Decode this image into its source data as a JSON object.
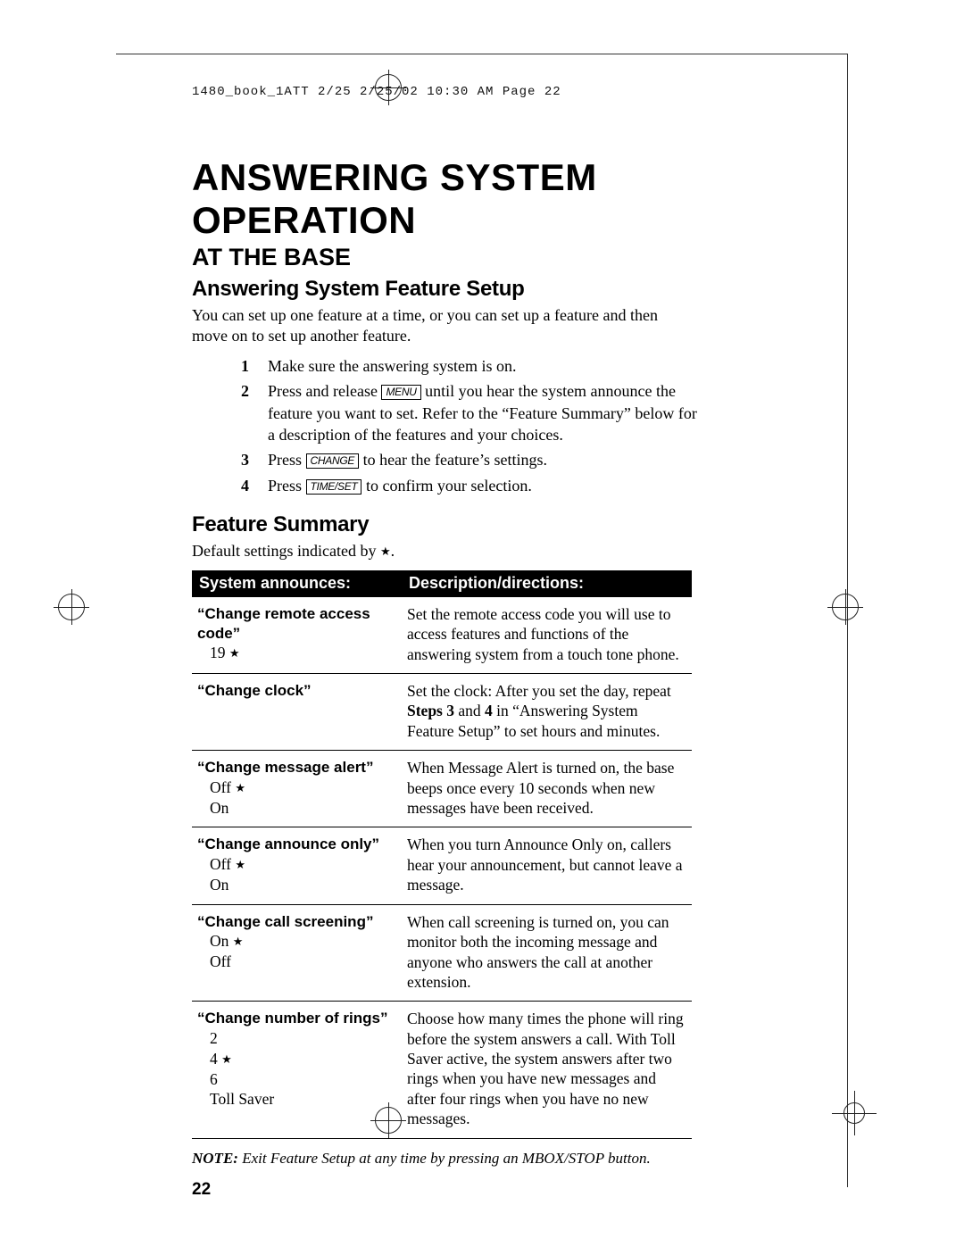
{
  "header_line": "1480_book_1ATT 2/25  2/25/02  10:30 AM  Page 22",
  "main_title": "ANSWERING SYSTEM OPERATION",
  "subtitle": "AT THE BASE",
  "section1_title": "Answering System Feature Setup",
  "intro_text": "You can set up one feature at a time, or you can set up a feature and then move on to set up another feature.",
  "steps": [
    {
      "num": "1",
      "before": "Make sure the answering system is on.",
      "key": "",
      "after": ""
    },
    {
      "num": "2",
      "before": "Press and release ",
      "key": "MENU",
      "after": " until you hear the system announce the feature you want to set.  Refer to the “Feature Summary” below for a description of the features and your choices."
    },
    {
      "num": "3",
      "before": "Press ",
      "key": "CHANGE",
      "after": " to hear the feature’s settings."
    },
    {
      "num": "4",
      "before": "Press ",
      "key": "TIME/SET",
      "after": " to confirm your selection."
    }
  ],
  "section2_title": "Feature Summary",
  "default_note_pre": "Default settings indicated by ",
  "default_note_post": ".",
  "table_header": {
    "col1": "System announces:",
    "col2": "Description/directions:"
  },
  "rows": [
    {
      "label": "“Change remote access code”",
      "options": [
        {
          "text": "19",
          "star": true
        }
      ],
      "desc_parts": [
        "Set the remote access code you will use to access features and functions of the answering system from a touch tone phone."
      ]
    },
    {
      "label": "“Change clock”",
      "options": [],
      "desc_parts": [
        "Set the clock: After you set the day, repeat ",
        "Steps 3",
        " and ",
        "4",
        " in “Answering System Feature Setup” to set hours and minutes."
      ]
    },
    {
      "label": "“Change message alert”",
      "options": [
        {
          "text": "Off",
          "star": true
        },
        {
          "text": "On",
          "star": false
        }
      ],
      "desc_parts": [
        "When Message Alert is turned on, the base beeps once every 10 seconds when new messages have been received."
      ]
    },
    {
      "label": "“Change announce only”",
      "options": [
        {
          "text": "Off",
          "star": true
        },
        {
          "text": "On",
          "star": false
        }
      ],
      "desc_parts": [
        "When you turn Announce Only on, callers hear your announcement, but cannot leave a message."
      ]
    },
    {
      "label": "“Change call screening”",
      "options": [
        {
          "text": "On",
          "star": true
        },
        {
          "text": "Off",
          "star": false
        }
      ],
      "desc_parts": [
        "When call screening is turned on, you can monitor both the incoming message and anyone who answers the call at another extension."
      ]
    },
    {
      "label": "“Change number of rings”",
      "options": [
        {
          "text": "2",
          "star": false
        },
        {
          "text": "4",
          "star": true
        },
        {
          "text": "6",
          "star": false
        },
        {
          "text": "Toll Saver",
          "star": false
        }
      ],
      "desc_parts": [
        "Choose how many times the phone will ring before the system answers a call. With Toll Saver active, the system answers after two rings when you have new messages and after four rings when you have no new messages."
      ]
    }
  ],
  "note_label": "NOTE:",
  "note_text": "  Exit Feature Setup at any time by pressing an MBOX/STOP button.",
  "page_number": "22",
  "star_glyph": "★"
}
